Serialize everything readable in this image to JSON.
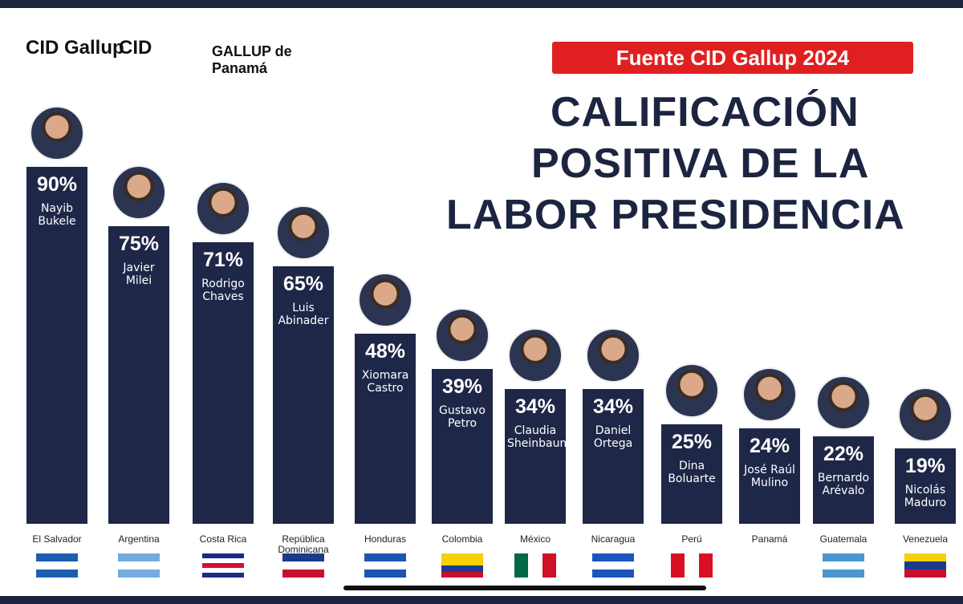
{
  "logos": [
    "CID Gallup",
    "CID",
    "GALLUP de Panamá"
  ],
  "source": "Fuente CID Gallup 2024",
  "chart_data": {
    "type": "bar",
    "title": [
      "CALIFICACIÓN",
      "POSITIVA DE LA",
      "LABOR PRESIDENCIA"
    ],
    "categories": [
      "El Salvador",
      "Argentina",
      "Costa Rica",
      "República Dominicana",
      "Honduras",
      "Colombia",
      "México",
      "Nicaragua",
      "Perú",
      "Panamá",
      "Guatemala",
      "Venezuela"
    ],
    "names": [
      "Nayib Bukele",
      "Javier Milei",
      "Rodrigo Chaves",
      "Luis Abinader",
      "Xiomara Castro",
      "Gustavo Petro",
      "Claudia Sheinbaum",
      "Daniel Ortega",
      "Dina Boluarte",
      "José Raúl Mulino",
      "Bernardo Arévalo",
      "Nicolás Maduro"
    ],
    "values": [
      90,
      75,
      71,
      65,
      48,
      39,
      34,
      34,
      25,
      24,
      22,
      19
    ],
    "value_labels": [
      "90%",
      "75%",
      "71%",
      "65%",
      "48%",
      "39%",
      "34%",
      "34%",
      "25%",
      "24%",
      "22%",
      "19%"
    ],
    "color": "#1e2747"
  }
}
